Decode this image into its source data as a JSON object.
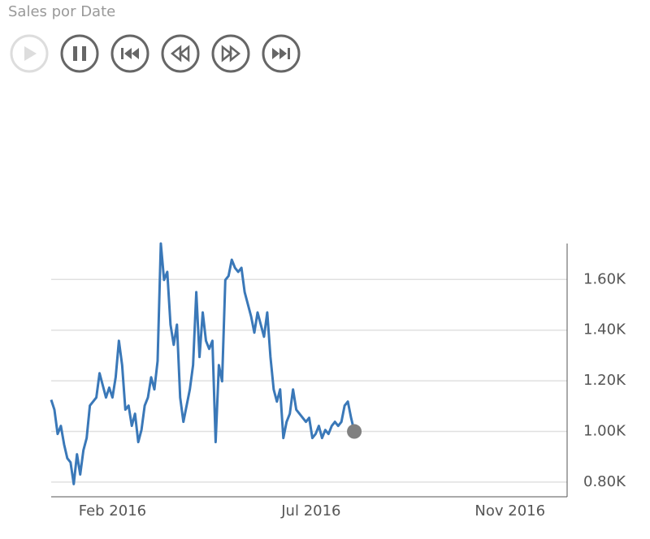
{
  "header": {
    "title": "Sales por Date"
  },
  "chart_data": {
    "type": "line",
    "series": [
      {
        "color": "#3a78b8",
        "values": [
          1125,
          1086,
          990,
          1022,
          949,
          894,
          878,
          792,
          910,
          830,
          926,
          974,
          1102,
          1118,
          1134,
          1230,
          1182,
          1134,
          1173,
          1134,
          1214,
          1358,
          1262,
          1086,
          1102,
          1022,
          1070,
          958,
          1006,
          1102,
          1134,
          1214,
          1166,
          1278,
          1742,
          1598,
          1630,
          1422,
          1342,
          1422,
          1134,
          1038,
          1102,
          1166,
          1262,
          1550,
          1294,
          1470,
          1358,
          1326,
          1358,
          958,
          1262,
          1198,
          1598,
          1614,
          1678,
          1646,
          1630,
          1646,
          1550,
          1502,
          1454,
          1390,
          1470,
          1422,
          1374,
          1470,
          1294,
          1166,
          1118,
          1166,
          974,
          1038,
          1070,
          1166,
          1086,
          1070,
          1054,
          1038,
          1054,
          974,
          990,
          1022,
          974,
          1006,
          990,
          1022,
          1038,
          1022,
          1038,
          1102,
          1118,
          1054,
          1000
        ]
      }
    ],
    "marker_color": "#808080",
    "xlim": [
      0,
      160
    ],
    "xticks": [
      {
        "value": 19,
        "label": "Feb 2016"
      },
      {
        "value": 80.6,
        "label": "Jul 2016"
      },
      {
        "value": 142.3,
        "label": "Nov 2016"
      }
    ],
    "ylim": [
      742,
      1742
    ],
    "yticks": [
      {
        "value": 800,
        "label": "0.80K"
      },
      {
        "value": 1000,
        "label": "1.00K"
      },
      {
        "value": 1200,
        "label": "1.20K"
      },
      {
        "value": 1400,
        "label": "1.40K"
      },
      {
        "value": 1600,
        "label": "1.60K"
      }
    ],
    "grid": true
  }
}
